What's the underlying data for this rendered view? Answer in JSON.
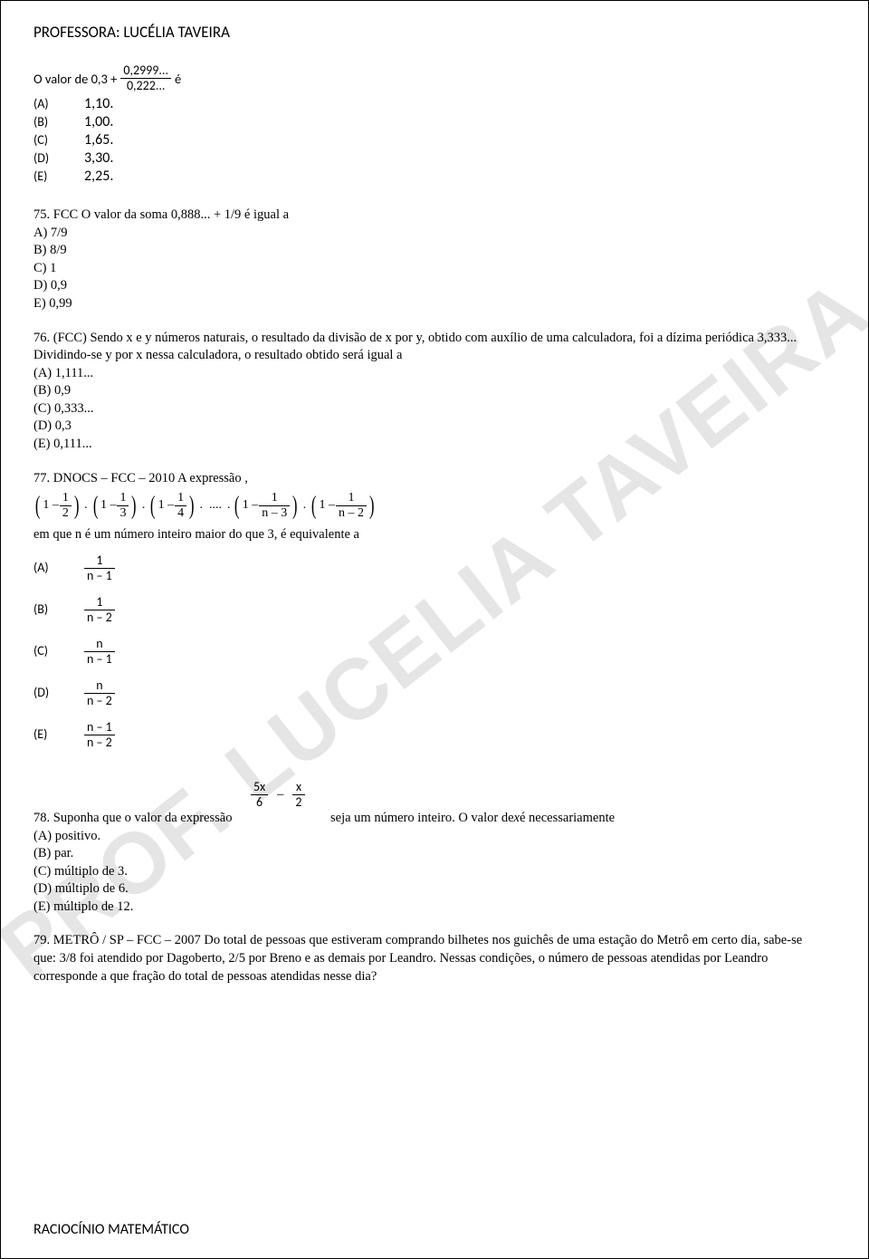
{
  "header": "PROFESSORA: LUCÉLIA TAVEIRA",
  "footer": "RACIOCÍNIO MATEMÁTICO",
  "watermark": "PROF. LUCELIA TAVEIRA",
  "q74": {
    "prompt_prefix": "O valor de 0,3 + ",
    "frac_num": "0,2999...",
    "frac_den": "0,222...",
    "prompt_suffix": " é",
    "opts": {
      "A": "1,10.",
      "B": "1,00.",
      "C": "1,65.",
      "D": "3,30.",
      "E": "2,25."
    }
  },
  "q75": {
    "prompt": "75. FCC O valor da soma 0,888... + 1/9 é igual a",
    "opts": [
      "A) 7/9",
      "B) 8/9",
      "C) 1",
      "D) 0,9",
      "E) 0,99"
    ]
  },
  "q76": {
    "prompt": "76. (FCC) Sendo x e y números naturais, o resultado da divisão de x por y, obtido com auxílio de uma calculadora, foi a dízima periódica 3,333...  Dividindo-se y por x nessa calculadora, o resultado obtido será igual a",
    "opts": [
      "(A) 1,111...",
      "(B) 0,9",
      "(C) 0,333...",
      "(D) 0,3",
      "(E) 0,111..."
    ]
  },
  "q77": {
    "prompt": "77. DNOCS – FCC – 2010 A expressão ,",
    "expr_terms": [
      {
        "num": "1",
        "den": "2"
      },
      {
        "num": "1",
        "den": "3"
      },
      {
        "num": "1",
        "den": "4"
      },
      {
        "ellipsis": "...."
      },
      {
        "num": "1",
        "den": "n – 3"
      },
      {
        "num": "1",
        "den": "n – 2"
      }
    ],
    "subtext": "em que n é um número inteiro maior do que 3, é equivalente a",
    "opts": [
      {
        "letter": "(A)",
        "num": "1",
        "den": "n – 1"
      },
      {
        "letter": "(B)",
        "num": "1",
        "den": "n – 2"
      },
      {
        "letter": "(C)",
        "num": "n",
        "den": "n – 1"
      },
      {
        "letter": "(D)",
        "num": "n",
        "den": "n – 2"
      },
      {
        "letter": "(E)",
        "num": "n – 1",
        "den": "n – 2"
      }
    ]
  },
  "q78": {
    "prefix": "78. Suponha que o valor da expressão",
    "frac1_num": "5x",
    "frac1_den": "6",
    "minus": "–",
    "frac2_num": "x",
    "frac2_den": "2",
    "suffix": "seja um número inteiro. O valor de ",
    "italic_x": "x",
    "suffix2": " é necessariamente",
    "opts": [
      "(A) positivo.",
      "(B) par.",
      "(C) múltiplo de 3.",
      "(D) múltiplo de 6.",
      "(E) múltiplo de 12."
    ]
  },
  "q79": {
    "prompt": "79. METRÔ / SP – FCC – 2007 Do total de pessoas que estiveram comprando bilhetes nos guichês de uma estação do Metrô em certo dia, sabe-se que: 3/8 foi atendido por Dagoberto, 2/5 por Breno e as demais por Leandro. Nessas condições, o número de pessoas atendidas por Leandro corresponde a que fração do total de pessoas atendidas nesse dia?"
  }
}
